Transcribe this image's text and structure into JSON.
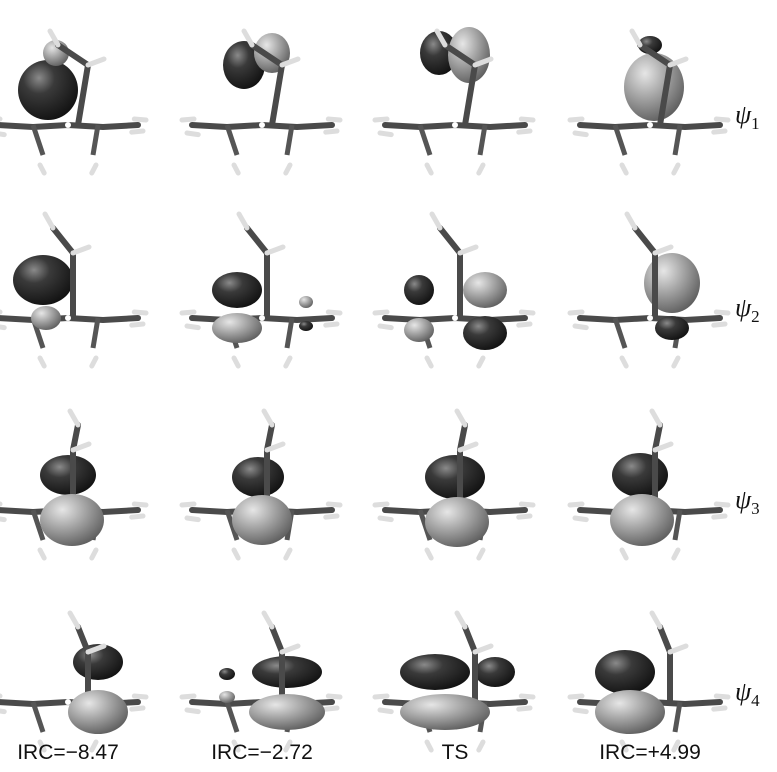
{
  "columns": [
    "IRC=−8.47",
    "IRC=−2.72",
    "TS",
    "IRC=+4.99"
  ],
  "rows": [
    {
      "symbol": "ψ",
      "subscript": "1"
    },
    {
      "symbol": "ψ",
      "subscript": "2"
    },
    {
      "symbol": "ψ",
      "subscript": "3"
    },
    {
      "symbol": "ψ",
      "subscript": "4"
    }
  ]
}
